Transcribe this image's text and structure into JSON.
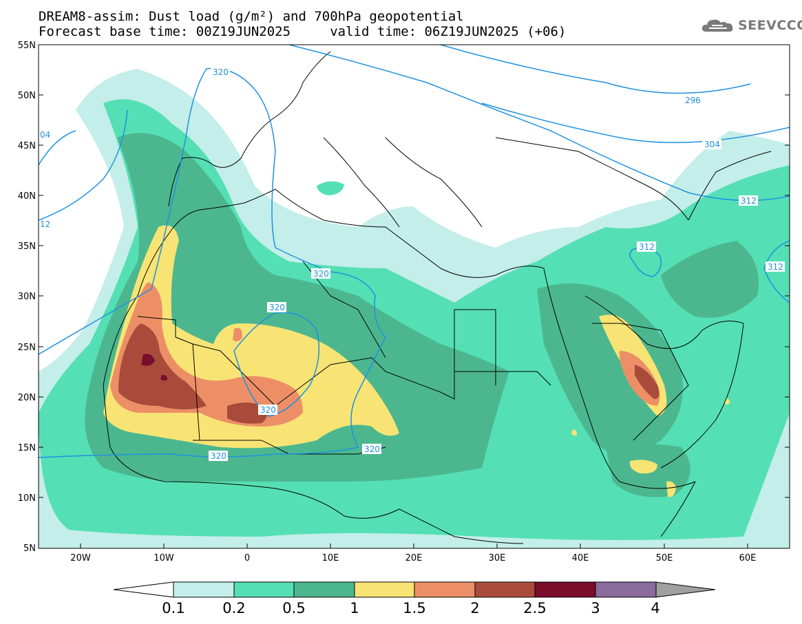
{
  "header": {
    "title_line1": "DREAM8-assim: Dust load (g/m²) and 700hPa geopotential",
    "title_line2": "Forecast base time: 00Z19JUN2025     valid time: 06Z19JUN2025 (+06)"
  },
  "logo": {
    "text": "SEEVCCC",
    "icon": "cloud-icon"
  },
  "axes": {
    "lat_labels": [
      "55N",
      "50N",
      "45N",
      "40N",
      "35N",
      "30N",
      "25N",
      "20N",
      "15N",
      "10N",
      "5N"
    ],
    "lon_labels": [
      "20W",
      "10W",
      "0",
      "10E",
      "20E",
      "30E",
      "40E",
      "50E",
      "60E"
    ]
  },
  "colorbar": {
    "levels": [
      "0.1",
      "0.2",
      "0.5",
      "1",
      "1.5",
      "2",
      "2.5",
      "3",
      "4"
    ],
    "colors": [
      "#c4eee9",
      "#55dfb4",
      "#4cb78f",
      "#f7e474",
      "#ec8f67",
      "#a94b3a",
      "#7a0c2c",
      "#8b6a9c"
    ],
    "low_color": "#ffffff",
    "high_color": "#a0a0a0"
  },
  "contour_labels": [
    "320",
    "296",
    "304",
    "312",
    "312",
    "312",
    "320",
    "320",
    "320",
    "320",
    "320",
    "04",
    "12"
  ],
  "colors": {
    "contour": "#1e90e0",
    "border": "#000000"
  }
}
